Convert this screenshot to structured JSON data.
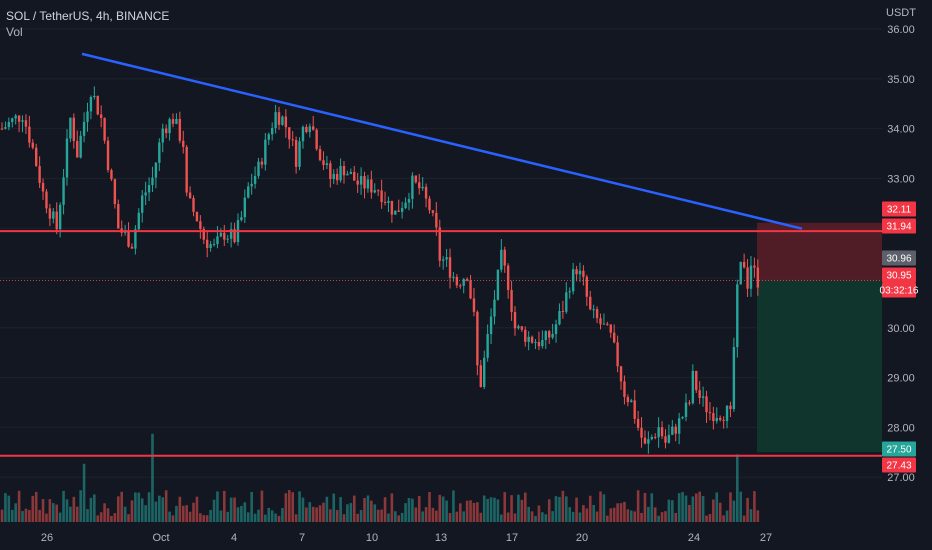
{
  "header": {
    "symbol_line": "SOL / TetherUS, 4h, BINANCE",
    "volume_label": "Vol"
  },
  "colors": {
    "background": "#131722",
    "up": "#26a69a",
    "down": "#ef5350",
    "trendline": "#2962ff",
    "level_line": "#f23645",
    "last_price_tag": "#f23645",
    "prev_price_tag": "#5d606b",
    "target_tag": "#26a69a",
    "risk_zone": "#5c1f28",
    "reward_zone": "#10392f"
  },
  "chart_data": {
    "type": "candlestick",
    "title": "SOL / TetherUS, 4h, BINANCE",
    "currency": "USDT",
    "ylim": [
      26.1,
      36.1
    ],
    "y_ticks": [
      "36.00",
      "35.00",
      "34.00",
      "33.00",
      "32.00",
      "31.00",
      "30.00",
      "29.00",
      "28.00",
      "27.00"
    ],
    "x_labels": [
      "26",
      "Oct",
      "4",
      "7",
      "10",
      "13",
      "17",
      "20",
      "24",
      "27"
    ],
    "price_tags": [
      {
        "label": "32.11",
        "value": 32.11,
        "role": "stop"
      },
      {
        "label": "31.94",
        "value": 31.94,
        "role": "resistance"
      },
      {
        "label": "30.96",
        "value": 30.96,
        "role": "prev-close"
      },
      {
        "label": "30.95",
        "value": 30.95,
        "role": "last-price"
      },
      {
        "label": "03:32:16",
        "value": 30.8,
        "role": "countdown"
      },
      {
        "label": "27.50",
        "value": 27.5,
        "role": "target"
      },
      {
        "label": "27.43",
        "value": 27.43,
        "role": "support"
      }
    ],
    "horizontal_levels": [
      31.94,
      27.43
    ],
    "trendline": {
      "from_value": 35.5,
      "to_value": 31.99
    },
    "position": {
      "entry": 30.95,
      "stop": 32.11,
      "target": 27.5
    },
    "waypoints": [
      [
        0,
        34.0
      ],
      [
        6,
        34.3
      ],
      [
        9,
        33.6
      ],
      [
        12,
        32.7
      ],
      [
        16,
        32.0
      ],
      [
        18,
        33.1
      ],
      [
        20,
        34.2
      ],
      [
        22,
        33.5
      ],
      [
        26,
        34.8
      ],
      [
        29,
        34.2
      ],
      [
        34,
        32.0
      ],
      [
        38,
        31.7
      ],
      [
        41,
        32.6
      ],
      [
        44,
        33.0
      ],
      [
        47,
        34.0
      ],
      [
        50,
        34.2
      ],
      [
        53,
        33.7
      ],
      [
        54,
        32.6
      ],
      [
        57,
        32.2
      ],
      [
        59,
        31.8
      ],
      [
        62,
        31.6
      ],
      [
        65,
        31.9
      ],
      [
        68,
        31.8
      ],
      [
        70,
        32.2
      ],
      [
        72,
        32.8
      ],
      [
        75,
        33.2
      ],
      [
        78,
        33.9
      ],
      [
        80,
        34.3
      ],
      [
        82,
        34.2
      ],
      [
        84,
        33.9
      ],
      [
        86,
        33.4
      ],
      [
        88,
        34.0
      ],
      [
        90,
        34.2
      ],
      [
        93,
        33.5
      ],
      [
        96,
        33.0
      ],
      [
        100,
        33.2
      ],
      [
        104,
        32.9
      ],
      [
        110,
        32.8
      ],
      [
        115,
        32.3
      ],
      [
        118,
        32.6
      ],
      [
        120,
        32.9
      ],
      [
        122,
        32.8
      ],
      [
        125,
        32.4
      ],
      [
        127,
        31.9
      ],
      [
        128,
        31.4
      ],
      [
        130,
        31.3
      ],
      [
        133,
        30.9
      ],
      [
        136,
        31.1
      ],
      [
        138,
        30.2
      ],
      [
        139,
        29.2
      ],
      [
        140,
        28.9
      ],
      [
        142,
        29.8
      ],
      [
        144,
        30.6
      ],
      [
        146,
        31.4
      ],
      [
        148,
        30.9
      ],
      [
        150,
        30.0
      ],
      [
        154,
        29.8
      ],
      [
        158,
        29.7
      ],
      [
        161,
        29.9
      ],
      [
        164,
        30.4
      ],
      [
        166,
        30.9
      ],
      [
        168,
        31.2
      ],
      [
        170,
        30.9
      ],
      [
        172,
        30.3
      ],
      [
        176,
        30.0
      ],
      [
        178,
        29.8
      ],
      [
        180,
        29.3
      ],
      [
        182,
        28.7
      ],
      [
        184,
        28.5
      ],
      [
        186,
        28.0
      ],
      [
        188,
        27.6
      ],
      [
        190,
        27.8
      ],
      [
        192,
        28.0
      ],
      [
        194,
        27.7
      ],
      [
        196,
        27.9
      ],
      [
        198,
        28.1
      ],
      [
        201,
        28.5
      ],
      [
        202,
        29.0
      ],
      [
        204,
        28.6
      ],
      [
        207,
        28.3
      ],
      [
        210,
        28.3
      ],
      [
        212,
        28.3
      ],
      [
        213,
        28.2
      ],
      [
        214,
        29.6
      ],
      [
        215,
        30.7
      ],
      [
        216,
        31.2
      ],
      [
        217,
        31.3
      ],
      [
        218,
        30.9
      ],
      [
        219,
        31.3
      ],
      [
        220,
        31.1
      ],
      [
        221,
        30.95
      ]
    ],
    "volume": {
      "label": "Vol",
      "visible": true
    }
  }
}
